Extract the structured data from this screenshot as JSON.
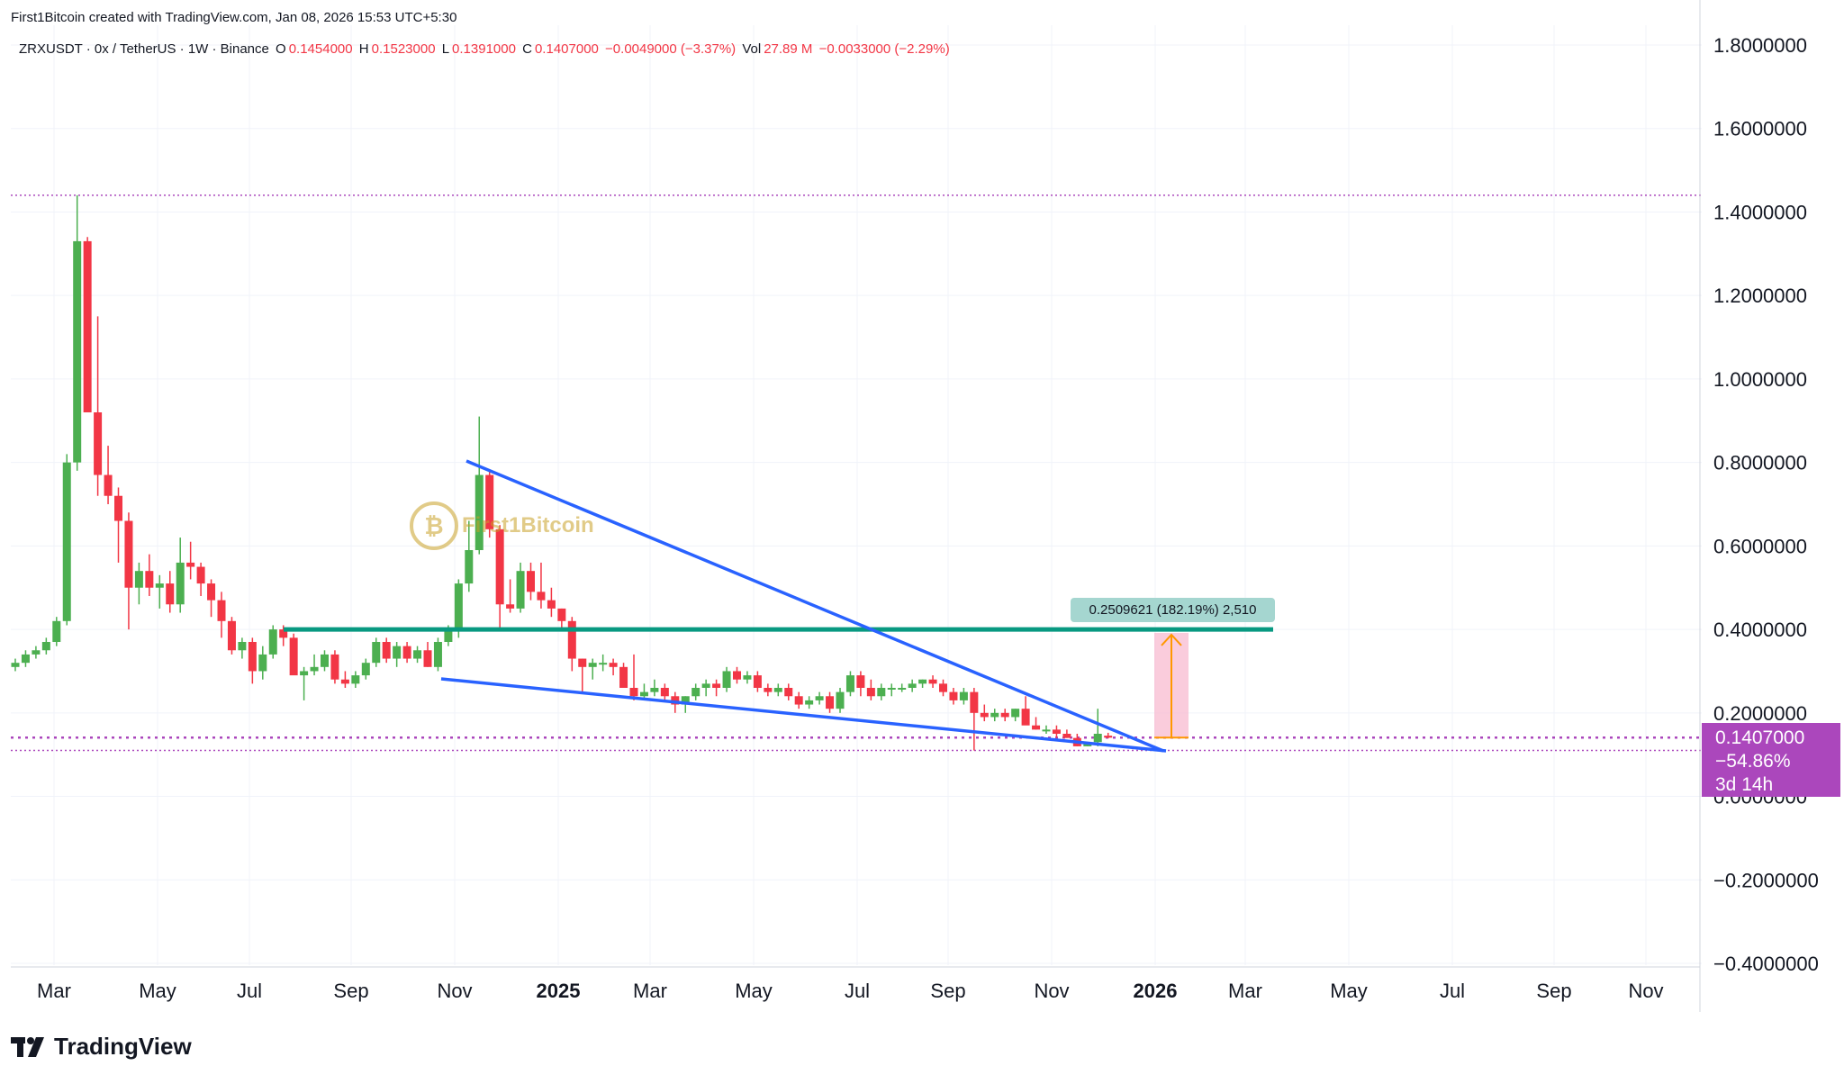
{
  "header": {
    "creator": "First1Bitcoin created with TradingView.com, Jan 08, 2026 15:53 UTC+5:30"
  },
  "legend": {
    "symbol": "ZRXUSDT · 0x / TetherUS · 1W · Binance",
    "o_label": "O",
    "o_value": "0.1454000",
    "h_label": "H",
    "h_value": "0.1523000",
    "l_label": "L",
    "l_value": "0.1391000",
    "c_label": "C",
    "c_value": "0.1407000",
    "change": "−0.0049000 (−3.37%)",
    "vol_label": "Vol",
    "vol_value": "27.89 M",
    "vol_change": "−0.0033000 (−2.29%)"
  },
  "price_tag": {
    "price": "0.1407000",
    "change": "−54.86%",
    "countdown": "3d 14h",
    "color": "#ab47bc"
  },
  "measure": {
    "label": "0.2509621 (182.19%) 2,510"
  },
  "watermark": {
    "text": "First1Bitcoin"
  },
  "brand": {
    "name": "TradingView"
  },
  "colors": {
    "up": "#4caf50",
    "down": "#f23645",
    "trendline": "#2962ff",
    "resistance": "#089981",
    "dotted": "#ab47bc"
  },
  "chart_data": {
    "type": "candlestick",
    "title": "ZRXUSDT · 0x / TetherUS · 1W · Binance",
    "ylim": [
      -0.4,
      1.8
    ],
    "y_ticks": [
      "1.8000000",
      "1.6000000",
      "1.4000000",
      "1.2000000",
      "1.0000000",
      "0.8000000",
      "0.6000000",
      "0.4000000",
      "0.2000000",
      "0.0000000",
      "−0.2000000",
      "−0.4000000"
    ],
    "y_tick_values": [
      1.8,
      1.6,
      1.4,
      1.2,
      1.0,
      0.8,
      0.6,
      0.4,
      0.2,
      0.0,
      -0.2,
      -0.4
    ],
    "x_ticks": [
      {
        "label": "Mar",
        "bold": false
      },
      {
        "label": "May",
        "bold": false
      },
      {
        "label": "Jul",
        "bold": false
      },
      {
        "label": "Sep",
        "bold": false
      },
      {
        "label": "Nov",
        "bold": false
      },
      {
        "label": "2025",
        "bold": true
      },
      {
        "label": "Mar",
        "bold": false
      },
      {
        "label": "May",
        "bold": false
      },
      {
        "label": "Jul",
        "bold": false
      },
      {
        "label": "Sep",
        "bold": false
      },
      {
        "label": "Nov",
        "bold": false
      },
      {
        "label": "2026",
        "bold": true
      },
      {
        "label": "Mar",
        "bold": false
      },
      {
        "label": "May",
        "bold": false
      },
      {
        "label": "Jul",
        "bold": false
      },
      {
        "label": "Sep",
        "bold": false
      },
      {
        "label": "Nov",
        "bold": false
      }
    ],
    "candles": [
      [
        0.31,
        0.33,
        0.3,
        0.32
      ],
      [
        0.32,
        0.35,
        0.31,
        0.34
      ],
      [
        0.34,
        0.36,
        0.33,
        0.35
      ],
      [
        0.35,
        0.38,
        0.34,
        0.37
      ],
      [
        0.37,
        0.43,
        0.36,
        0.42
      ],
      [
        0.42,
        0.82,
        0.41,
        0.8
      ],
      [
        0.8,
        1.44,
        0.78,
        1.33
      ],
      [
        1.33,
        1.34,
        0.92,
        0.92
      ],
      [
        0.92,
        1.15,
        0.72,
        0.77
      ],
      [
        0.77,
        0.84,
        0.7,
        0.72
      ],
      [
        0.72,
        0.74,
        0.56,
        0.66
      ],
      [
        0.66,
        0.68,
        0.4,
        0.5
      ],
      [
        0.5,
        0.56,
        0.46,
        0.54
      ],
      [
        0.54,
        0.58,
        0.48,
        0.5
      ],
      [
        0.5,
        0.53,
        0.45,
        0.51
      ],
      [
        0.51,
        0.54,
        0.44,
        0.46
      ],
      [
        0.46,
        0.62,
        0.44,
        0.56
      ],
      [
        0.56,
        0.61,
        0.52,
        0.55
      ],
      [
        0.55,
        0.56,
        0.48,
        0.51
      ],
      [
        0.51,
        0.52,
        0.43,
        0.47
      ],
      [
        0.47,
        0.49,
        0.38,
        0.42
      ],
      [
        0.42,
        0.43,
        0.34,
        0.35
      ],
      [
        0.35,
        0.38,
        0.33,
        0.37
      ],
      [
        0.37,
        0.38,
        0.27,
        0.3
      ],
      [
        0.3,
        0.36,
        0.28,
        0.34
      ],
      [
        0.34,
        0.41,
        0.33,
        0.4
      ],
      [
        0.4,
        0.41,
        0.36,
        0.38
      ],
      [
        0.38,
        0.39,
        0.3,
        0.29
      ],
      [
        0.29,
        0.31,
        0.23,
        0.3
      ],
      [
        0.3,
        0.34,
        0.29,
        0.31
      ],
      [
        0.31,
        0.35,
        0.3,
        0.34
      ],
      [
        0.34,
        0.35,
        0.27,
        0.28
      ],
      [
        0.28,
        0.3,
        0.26,
        0.27
      ],
      [
        0.27,
        0.3,
        0.26,
        0.29
      ],
      [
        0.29,
        0.33,
        0.28,
        0.32
      ],
      [
        0.32,
        0.38,
        0.31,
        0.37
      ],
      [
        0.37,
        0.38,
        0.32,
        0.33
      ],
      [
        0.33,
        0.37,
        0.31,
        0.36
      ],
      [
        0.36,
        0.37,
        0.32,
        0.33
      ],
      [
        0.33,
        0.36,
        0.32,
        0.35
      ],
      [
        0.35,
        0.37,
        0.31,
        0.31
      ],
      [
        0.31,
        0.38,
        0.3,
        0.37
      ],
      [
        0.37,
        0.41,
        0.36,
        0.4
      ],
      [
        0.4,
        0.52,
        0.38,
        0.51
      ],
      [
        0.51,
        0.66,
        0.49,
        0.59
      ],
      [
        0.59,
        0.91,
        0.58,
        0.77
      ],
      [
        0.77,
        0.78,
        0.62,
        0.64
      ],
      [
        0.64,
        0.65,
        0.4,
        0.46
      ],
      [
        0.46,
        0.52,
        0.44,
        0.45
      ],
      [
        0.45,
        0.56,
        0.44,
        0.54
      ],
      [
        0.54,
        0.56,
        0.47,
        0.49
      ],
      [
        0.49,
        0.56,
        0.45,
        0.47
      ],
      [
        0.47,
        0.5,
        0.43,
        0.45
      ],
      [
        0.45,
        0.45,
        0.4,
        0.42
      ],
      [
        0.42,
        0.43,
        0.3,
        0.33
      ],
      [
        0.33,
        0.33,
        0.25,
        0.31
      ],
      [
        0.31,
        0.33,
        0.28,
        0.32
      ],
      [
        0.32,
        0.34,
        0.3,
        0.32
      ],
      [
        0.32,
        0.33,
        0.29,
        0.31
      ],
      [
        0.31,
        0.32,
        0.26,
        0.26
      ],
      [
        0.26,
        0.34,
        0.23,
        0.24
      ],
      [
        0.24,
        0.27,
        0.23,
        0.25
      ],
      [
        0.25,
        0.28,
        0.24,
        0.26
      ],
      [
        0.26,
        0.27,
        0.23,
        0.24
      ],
      [
        0.24,
        0.25,
        0.2,
        0.22
      ],
      [
        0.22,
        0.24,
        0.2,
        0.24
      ],
      [
        0.24,
        0.27,
        0.23,
        0.26
      ],
      [
        0.26,
        0.28,
        0.24,
        0.27
      ],
      [
        0.27,
        0.28,
        0.24,
        0.26
      ],
      [
        0.26,
        0.31,
        0.25,
        0.3
      ],
      [
        0.3,
        0.31,
        0.27,
        0.28
      ],
      [
        0.28,
        0.3,
        0.27,
        0.29
      ],
      [
        0.29,
        0.3,
        0.25,
        0.26
      ],
      [
        0.26,
        0.27,
        0.24,
        0.25
      ],
      [
        0.25,
        0.27,
        0.24,
        0.26
      ],
      [
        0.26,
        0.27,
        0.23,
        0.24
      ],
      [
        0.24,
        0.25,
        0.21,
        0.22
      ],
      [
        0.22,
        0.24,
        0.21,
        0.23
      ],
      [
        0.23,
        0.25,
        0.22,
        0.24
      ],
      [
        0.24,
        0.25,
        0.2,
        0.21
      ],
      [
        0.21,
        0.26,
        0.2,
        0.25
      ],
      [
        0.25,
        0.3,
        0.24,
        0.29
      ],
      [
        0.29,
        0.3,
        0.24,
        0.26
      ],
      [
        0.26,
        0.28,
        0.23,
        0.24
      ],
      [
        0.24,
        0.27,
        0.23,
        0.26
      ],
      [
        0.26,
        0.27,
        0.24,
        0.26
      ],
      [
        0.26,
        0.27,
        0.25,
        0.26
      ],
      [
        0.26,
        0.28,
        0.25,
        0.27
      ],
      [
        0.27,
        0.28,
        0.26,
        0.28
      ],
      [
        0.28,
        0.29,
        0.26,
        0.27
      ],
      [
        0.27,
        0.28,
        0.24,
        0.25
      ],
      [
        0.25,
        0.26,
        0.22,
        0.23
      ],
      [
        0.23,
        0.26,
        0.22,
        0.25
      ],
      [
        0.25,
        0.26,
        0.11,
        0.2
      ],
      [
        0.2,
        0.22,
        0.18,
        0.19
      ],
      [
        0.19,
        0.21,
        0.18,
        0.2
      ],
      [
        0.2,
        0.21,
        0.18,
        0.19
      ],
      [
        0.19,
        0.21,
        0.18,
        0.21
      ],
      [
        0.21,
        0.24,
        0.18,
        0.17
      ],
      [
        0.17,
        0.19,
        0.16,
        0.16
      ],
      [
        0.16,
        0.17,
        0.15,
        0.16
      ],
      [
        0.16,
        0.17,
        0.14,
        0.15
      ],
      [
        0.15,
        0.16,
        0.14,
        0.14
      ],
      [
        0.14,
        0.15,
        0.12,
        0.12
      ],
      [
        0.12,
        0.13,
        0.12,
        0.13
      ],
      [
        0.13,
        0.21,
        0.12,
        0.15
      ],
      [
        0.1454,
        0.1523,
        0.1391,
        0.1407
      ]
    ],
    "resistance_level": 0.4,
    "dotted_levels": [
      1.44,
      0.1407,
      0.11
    ],
    "measure_from": 0.1407,
    "measure_to": 0.3917,
    "grid": true
  }
}
